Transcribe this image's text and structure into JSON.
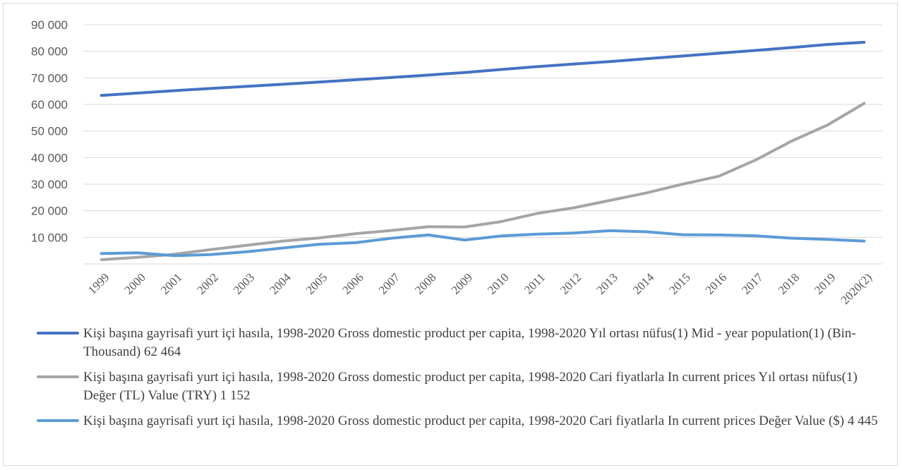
{
  "chart_data": {
    "type": "line",
    "x": [
      "1999",
      "2000",
      "2001",
      "2002",
      "2003",
      "2004",
      "2005",
      "2006",
      "2007",
      "2008",
      "2009",
      "2010",
      "2011",
      "2012",
      "2013",
      "2014",
      "2015",
      "2016",
      "2017",
      "2018",
      "2019",
      "2020(2)"
    ],
    "ylim": [
      0,
      90000
    ],
    "yticks": [
      "10 000",
      "20 000",
      "30 000",
      "40 000",
      "50 000",
      "60 000",
      "70 000",
      "80 000",
      "90 000"
    ],
    "ytick_values": [
      10000,
      20000,
      30000,
      40000,
      50000,
      60000,
      70000,
      80000,
      90000
    ],
    "grid": true,
    "legend_placement": "bottom",
    "series": [
      {
        "name": "Kişi başına gayrisafi yurt içi hasıla, 1998-2020 Gross domestic product per capita, 1998-2020 Yıl ortası nüfus(1) Mid - year population(1) (Bin-Thousand)  62 464",
        "color": "#4472c4",
        "values": [
          63364,
          64269,
          65166,
          66003,
          66795,
          67599,
          68435,
          69295,
          70158,
          71052,
          72039,
          73142,
          74224,
          75176,
          76148,
          77182,
          78218,
          79278,
          80313,
          81407,
          82579,
          83385
        ]
      },
      {
        "name": "Kişi başına gayrisafi yurt içi hasıla, 1998-2020 Gross domestic product per capita, 1998-2020 Cari fiyatlarla In current prices Yıl ortası nüfus(1) Değer (TL) Value (TRY)   1 152",
        "color": "#a5a5a5",
        "values": [
          1600,
          2500,
          3600,
          5400,
          7000,
          8600,
          9800,
          11400,
          12600,
          14000,
          13900,
          15900,
          19000,
          21100,
          23900,
          26700,
          30000,
          33000,
          39000,
          46200,
          52300,
          60400
        ]
      },
      {
        "name": "Kişi başına gayrisafi yurt içi hasıla, 1998-2020 Gross domestic product per capita, 1998-2020 Cari fiyatlarla In current prices Değer Value ($)   4 445",
        "color": "#5b9bd5",
        "values": [
          3900,
          4200,
          3100,
          3500,
          4600,
          6000,
          7400,
          8000,
          9700,
          10900,
          9000,
          10500,
          11200,
          11600,
          12500,
          12100,
          11000,
          10900,
          10600,
          9700,
          9200,
          8600
        ]
      }
    ]
  }
}
